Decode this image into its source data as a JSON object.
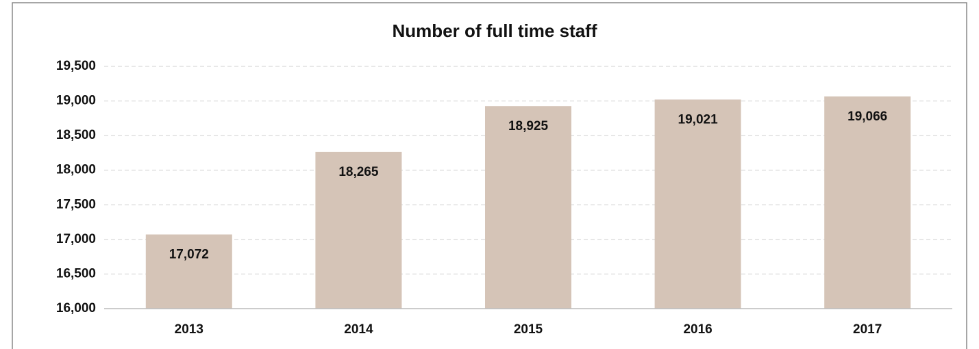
{
  "chart_data": {
    "type": "bar",
    "title": "Number of full time staff",
    "categories": [
      "2013",
      "2014",
      "2015",
      "2016",
      "2017"
    ],
    "values": [
      17072,
      18265,
      18925,
      19021,
      19066
    ],
    "value_labels": [
      "17,072",
      "18,265",
      "18,925",
      "19,021",
      "19,066"
    ],
    "color": "#d5c4b7",
    "ylim": [
      16000,
      19500
    ],
    "yticks": [
      {
        "value": 16000,
        "label": "16,000"
      },
      {
        "value": 16500,
        "label": "16,500"
      },
      {
        "value": 17000,
        "label": "17,000"
      },
      {
        "value": 17500,
        "label": "17,500"
      },
      {
        "value": 18000,
        "label": "18,000"
      },
      {
        "value": 18500,
        "label": "18,500"
      },
      {
        "value": 19000,
        "label": "19,000"
      },
      {
        "value": 19500,
        "label": "19,500"
      }
    ],
    "grid": true
  }
}
